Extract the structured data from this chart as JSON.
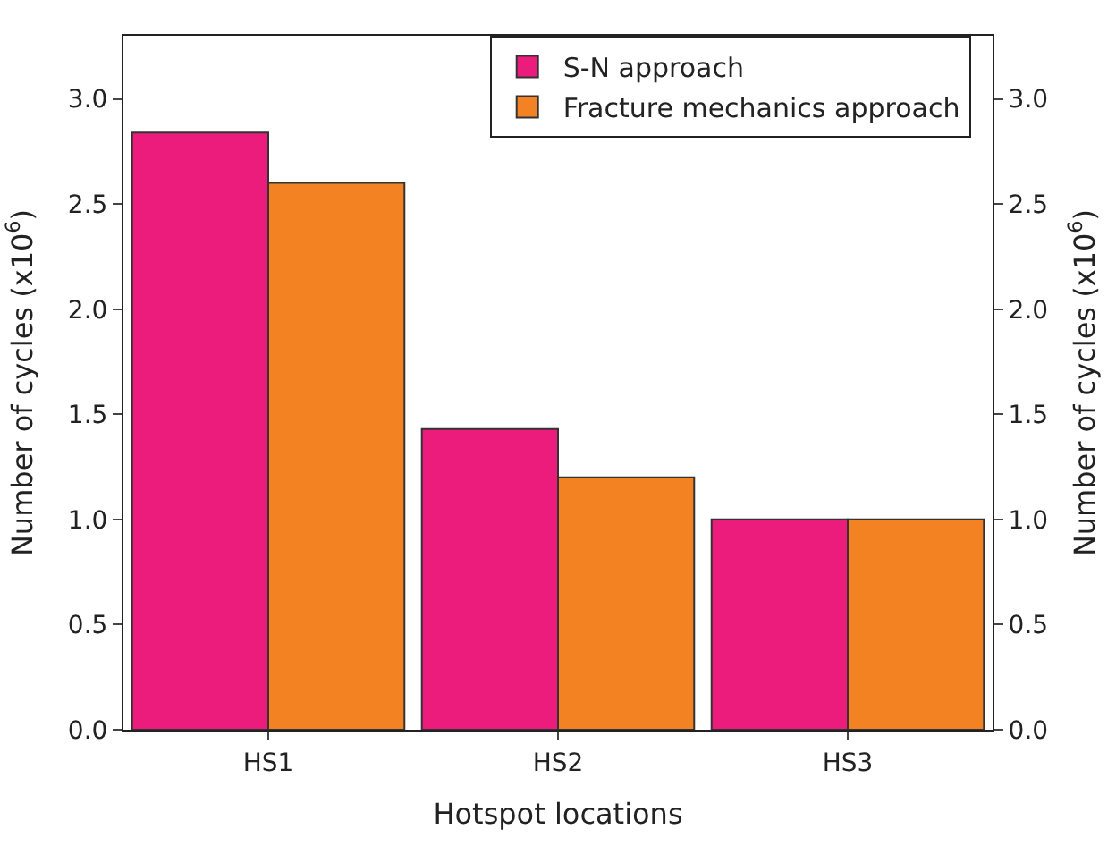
{
  "chart_data": {
    "type": "bar",
    "xlabel": "Hotspot locations",
    "ylabel": "Number of cycles (x10$^{6}$)",
    "y2label": "Number of cycles (x10$^{6}$)",
    "categories": [
      "HS1",
      "HS2",
      "HS3"
    ],
    "series": [
      {
        "name": "S-N approach",
        "color": "#ec1c7d",
        "values": [
          2.84,
          1.43,
          1.0
        ]
      },
      {
        "name": "Fracture mechanics approach",
        "color": "#f28222",
        "values": [
          2.6,
          1.2,
          1.0
        ]
      }
    ],
    "ylim": [
      0,
      3.3
    ],
    "yticks": [
      {
        "value": 0,
        "label": "0.0"
      },
      {
        "value": 0.5,
        "label": "0.5"
      },
      {
        "value": 1,
        "label": "1.0"
      },
      {
        "value": 1.5,
        "label": "1.5"
      },
      {
        "value": 2,
        "label": "2.0"
      },
      {
        "value": 2.5,
        "label": "2.5"
      },
      {
        "value": 3,
        "label": "3.0"
      }
    ],
    "y2lim": [
      0,
      3.3
    ],
    "y2ticks": [
      {
        "value": 0,
        "label": "0.0"
      },
      {
        "value": 0.5,
        "label": "0.5"
      },
      {
        "value": 1,
        "label": "1.0"
      },
      {
        "value": 1.5,
        "label": "1.5"
      },
      {
        "value": 2,
        "label": "2.0"
      },
      {
        "value": 2.5,
        "label": "2.5"
      },
      {
        "value": 3,
        "label": "3.0"
      }
    ],
    "legend": "top right"
  }
}
